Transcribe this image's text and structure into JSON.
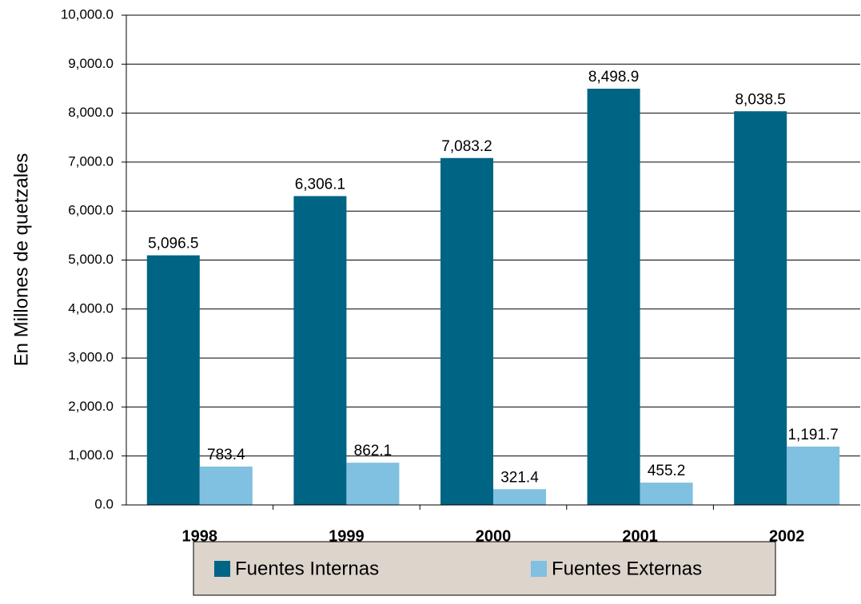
{
  "chart_data": {
    "type": "bar",
    "y_axis_label": "En Millones de quetzales",
    "categories": [
      "1998",
      "1999",
      "2000",
      "2001",
      "2002"
    ],
    "series": [
      {
        "name": "Fuentes Internas",
        "color": "#006484",
        "values": [
          5096.5,
          6306.1,
          7083.2,
          8498.9,
          8038.5
        ],
        "value_labels": [
          "5,096.5",
          "6,306.1",
          "7,083.2",
          "8,498.9",
          "8,038.5"
        ]
      },
      {
        "name": "Fuentes Externas",
        "color": "#80c0e0",
        "values": [
          783.4,
          862.1,
          321.4,
          455.2,
          1191.7
        ],
        "value_labels": [
          "783.4",
          "862.1",
          "321.4",
          "455.2",
          "1,191.7"
        ]
      }
    ],
    "ylim": [
      0,
      10000
    ],
    "yticks": [
      {
        "value": 0,
        "label": "0.0"
      },
      {
        "value": 1000,
        "label": "1,000.0"
      },
      {
        "value": 2000,
        "label": "2,000.0"
      },
      {
        "value": 3000,
        "label": "3,000.0"
      },
      {
        "value": 4000,
        "label": "4,000.0"
      },
      {
        "value": 5000,
        "label": "5,000.0"
      },
      {
        "value": 6000,
        "label": "6,000.0"
      },
      {
        "value": 7000,
        "label": "7,000.0"
      },
      {
        "value": 8000,
        "label": "8,000.0"
      },
      {
        "value": 9000,
        "label": "9,000.0"
      },
      {
        "value": 10000,
        "label": "10,000.0"
      }
    ],
    "grid": true,
    "legend": "bottom"
  }
}
